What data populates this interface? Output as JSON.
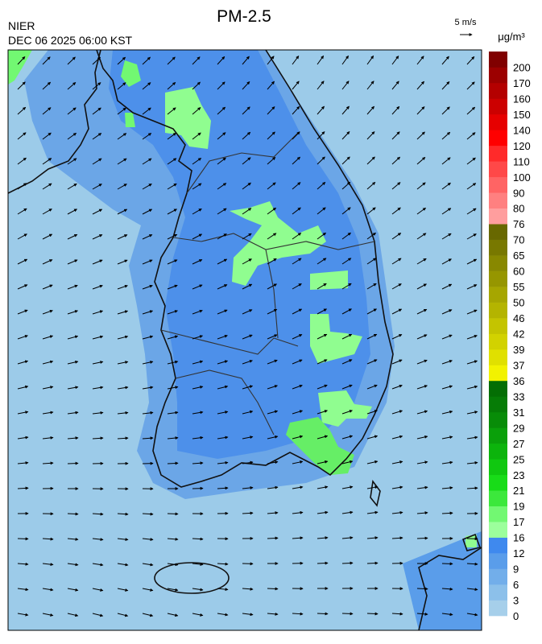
{
  "header": {
    "title": "PM-2.5",
    "agency": "NIER",
    "timestamp": "DEC 06 2025 06:00 KST",
    "wind_scale": "5 m/s"
  },
  "legend": {
    "unit": "μg/m³",
    "labels": [
      0,
      3,
      6,
      9,
      12,
      16,
      17,
      19,
      21,
      23,
      25,
      27,
      29,
      31,
      33,
      36,
      37,
      39,
      42,
      46,
      50,
      55,
      60,
      65,
      70,
      76,
      80,
      90,
      100,
      110,
      120,
      140,
      150,
      160,
      170,
      200
    ],
    "colors": [
      "#a6cfea",
      "#8cc0ea",
      "#72aeea",
      "#5a9dea",
      "#3f89ee",
      "#9cff9c",
      "#72f872",
      "#3ce83c",
      "#18dc18",
      "#10c810",
      "#0cb40c",
      "#0aa00a",
      "#088c08",
      "#067c06",
      "#046e04",
      "#f2f200",
      "#e0e000",
      "#d2d200",
      "#c4c400",
      "#b4b400",
      "#a6a600",
      "#969600",
      "#888800",
      "#787800",
      "#686800",
      "#ff9e9e",
      "#ff8080",
      "#ff6464",
      "#ff4848",
      "#ff2a2a",
      "#ff0000",
      "#e60000",
      "#cc0000",
      "#b40000",
      "#9c0000",
      "#800000"
    ]
  }
}
